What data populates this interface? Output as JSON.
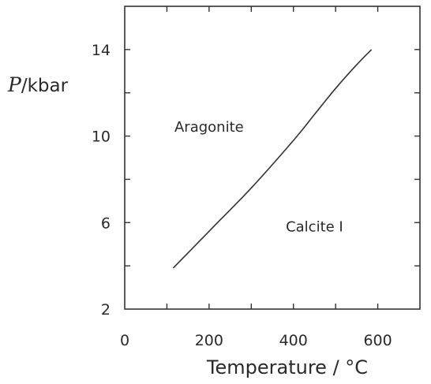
{
  "chart_data": {
    "type": "line",
    "xlabel": "Temperature / °C",
    "ylabel_symbol": "P",
    "ylabel_unit": "/kbar",
    "xlim": [
      0,
      700
    ],
    "ylim": [
      2,
      16
    ],
    "x_ticks": [
      0,
      200,
      400,
      600
    ],
    "y_ticks": [
      2,
      6,
      10,
      14
    ],
    "x_minor_ticks": [
      100,
      300,
      500
    ],
    "y_minor_ticks": [
      4,
      8,
      12
    ],
    "grid": false,
    "annotations": [
      {
        "text": "Aragonite",
        "x": 200,
        "y": 10.2
      },
      {
        "text": "Calcite I",
        "x": 450,
        "y": 5.6
      }
    ],
    "series": [
      {
        "x": [
          115,
          200,
          300,
          400,
          450,
          500,
          550,
          585
        ],
        "y": [
          3.9,
          5.6,
          7.6,
          9.8,
          11.0,
          12.2,
          13.3,
          14.0
        ]
      }
    ],
    "colors": {
      "line": "#333333",
      "axis": "#333333",
      "text": "#2a2a2a"
    }
  }
}
